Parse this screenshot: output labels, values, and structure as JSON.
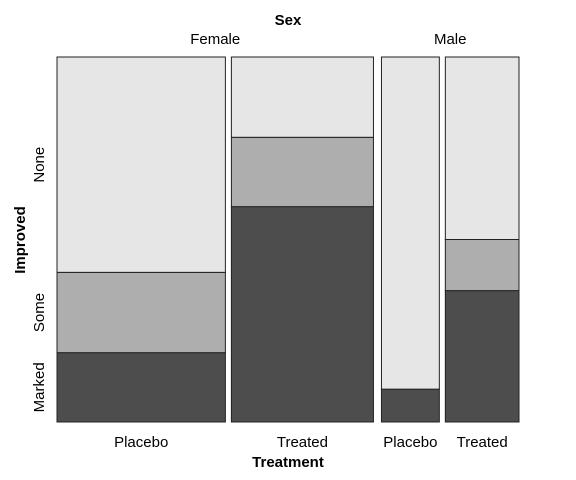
{
  "chart_data": {
    "type": "mosaic",
    "top_variable": "Sex",
    "x_variable": "Treatment",
    "y_variable": "Improved",
    "panels": [
      {
        "label": "Female",
        "columns": [
          {
            "label": "Placebo",
            "weight": 32,
            "fractions": {
              "Marked": 0.19,
              "Some": 0.22,
              "None": 0.59
            }
          },
          {
            "label": "Treated",
            "weight": 27,
            "fractions": {
              "Marked": 0.59,
              "Some": 0.19,
              "None": 0.22
            }
          }
        ]
      },
      {
        "label": "Male",
        "columns": [
          {
            "label": "Placebo",
            "weight": 11,
            "fractions": {
              "Marked": 0.09,
              "Some": 0.0,
              "None": 0.91
            }
          },
          {
            "label": "Treated",
            "weight": 14,
            "fractions": {
              "Marked": 0.36,
              "Some": 0.14,
              "None": 0.5
            }
          }
        ]
      }
    ],
    "levels": [
      "Marked",
      "Some",
      "None"
    ],
    "level_colors": {
      "Marked": "#4d4d4d",
      "Some": "#aeaeae",
      "None": "#e6e6e6"
    },
    "zero_cell_marker": "o",
    "grid": false,
    "legend": "none"
  }
}
